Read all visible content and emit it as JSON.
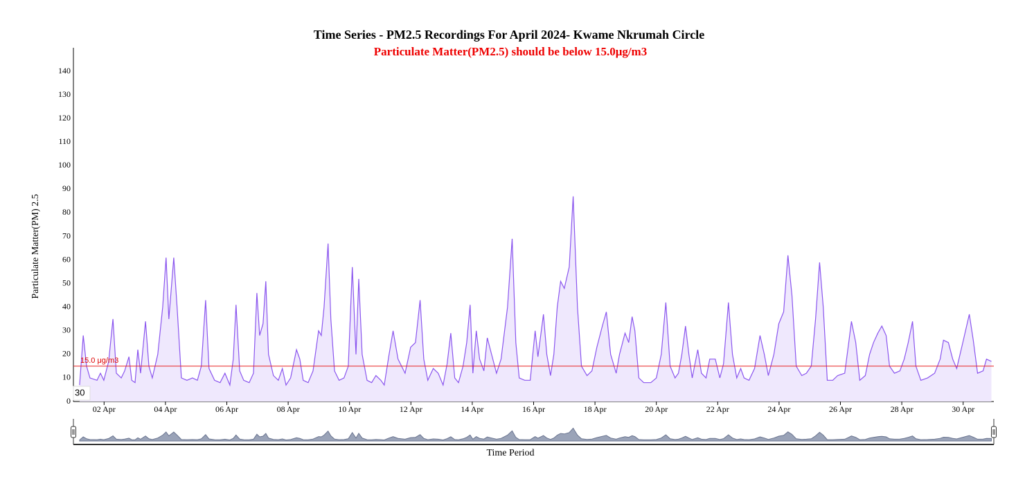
{
  "chart_data": {
    "type": "area",
    "title": "Time Series - PM2.5 Recordings For April 2024- Kwame Nkrumah Circle",
    "subtitle": "Particulate Matter(PM2.5) should be below 15.0μg/m3",
    "ylabel": "Particulate Matter(PM) 2.5",
    "xlabel": "Time Period",
    "annotation": "30",
    "threshold": 15,
    "threshold_label": "15.0 μg/m3",
    "threshold_color": "#e82020",
    "color": "#8a55ee",
    "fill_color": "#efe8fd",
    "xlim": [
      1,
      31
    ],
    "xticks": [
      {
        "value": 2,
        "label": "02 Apr"
      },
      {
        "value": 4,
        "label": "04 Apr"
      },
      {
        "value": 6,
        "label": "06 Apr"
      },
      {
        "value": 8,
        "label": "08 Apr"
      },
      {
        "value": 10,
        "label": "10 Apr"
      },
      {
        "value": 12,
        "label": "12 Apr"
      },
      {
        "value": 14,
        "label": "14 Apr"
      },
      {
        "value": 16,
        "label": "16 Apr"
      },
      {
        "value": 18,
        "label": "18 Apr"
      },
      {
        "value": 20,
        "label": "20 Apr"
      },
      {
        "value": 22,
        "label": "22 Apr"
      },
      {
        "value": 24,
        "label": "24 Apr"
      },
      {
        "value": 26,
        "label": "26 Apr"
      },
      {
        "value": 28,
        "label": "28 Apr"
      },
      {
        "value": 30,
        "label": "30 Apr"
      }
    ],
    "ylim": [
      0,
      150
    ],
    "yticks": [
      0,
      10,
      20,
      30,
      40,
      50,
      60,
      70,
      80,
      90,
      100,
      110,
      120,
      130,
      140
    ],
    "x": [
      1.2,
      1.32,
      1.43,
      1.54,
      1.77,
      1.88,
      1.99,
      2.15,
      2.29,
      2.4,
      2.56,
      2.67,
      2.81,
      2.9,
      3.01,
      3.1,
      3.19,
      3.35,
      3.46,
      3.57,
      3.75,
      3.91,
      4.02,
      4.11,
      4.27,
      4.38,
      4.52,
      4.7,
      4.88,
      5.04,
      5.17,
      5.31,
      5.42,
      5.6,
      5.78,
      5.94,
      6.1,
      6.21,
      6.3,
      6.42,
      6.55,
      6.73,
      6.87,
      6.98,
      7.07,
      7.18,
      7.27,
      7.36,
      7.52,
      7.68,
      7.81,
      7.93,
      8.08,
      8.27,
      8.38,
      8.49,
      8.65,
      8.81,
      8.99,
      9.08,
      9.17,
      9.3,
      9.39,
      9.51,
      9.66,
      9.82,
      9.96,
      10.09,
      10.21,
      10.3,
      10.41,
      10.57,
      10.72,
      10.86,
      11.02,
      11.13,
      11.29,
      11.42,
      11.58,
      11.81,
      11.99,
      12.15,
      12.3,
      12.42,
      12.55,
      12.73,
      12.89,
      13.05,
      13.18,
      13.3,
      13.43,
      13.55,
      13.7,
      13.82,
      13.93,
      14.02,
      14.13,
      14.24,
      14.38,
      14.49,
      14.63,
      14.79,
      14.94,
      15.15,
      15.3,
      15.42,
      15.53,
      15.71,
      15.89,
      16.05,
      16.14,
      16.32,
      16.43,
      16.55,
      16.66,
      16.77,
      16.88,
      17.0,
      17.16,
      17.29,
      17.43,
      17.56,
      17.74,
      17.9,
      18.06,
      18.24,
      18.37,
      18.51,
      18.69,
      18.8,
      18.98,
      19.1,
      19.21,
      19.3,
      19.43,
      19.59,
      19.82,
      20.0,
      20.16,
      20.31,
      20.45,
      20.61,
      20.72,
      20.83,
      20.95,
      21.06,
      21.17,
      21.35,
      21.47,
      21.62,
      21.74,
      21.92,
      22.07,
      22.19,
      22.35,
      22.48,
      22.62,
      22.75,
      22.86,
      23.02,
      23.2,
      23.38,
      23.52,
      23.65,
      23.83,
      23.99,
      24.15,
      24.29,
      24.42,
      24.56,
      24.74,
      24.89,
      25.05,
      25.19,
      25.32,
      25.44,
      25.57,
      25.75,
      25.91,
      26.14,
      26.27,
      26.36,
      26.5,
      26.63,
      26.81,
      26.95,
      27.08,
      27.22,
      27.35,
      27.49,
      27.6,
      27.76,
      27.94,
      28.08,
      28.21,
      28.35,
      28.46,
      28.62,
      28.84,
      29.07,
      29.25,
      29.36,
      29.52,
      29.66,
      29.79,
      29.97,
      30.2,
      30.33,
      30.47,
      30.65,
      30.76,
      30.92
    ],
    "values": [
      7,
      28,
      15,
      10,
      9,
      12,
      9,
      17,
      35,
      12,
      10,
      13,
      19,
      9,
      8,
      22,
      12,
      34,
      15,
      10,
      20,
      40,
      61,
      35,
      61,
      40,
      10,
      9,
      10,
      9,
      15,
      43,
      14,
      9,
      8,
      12,
      7,
      18,
      41,
      13,
      9,
      8,
      12,
      46,
      28,
      33,
      51,
      20,
      11,
      9,
      14,
      7,
      10,
      22,
      18,
      9,
      8,
      13,
      30,
      28,
      40,
      67,
      35,
      13,
      9,
      10,
      15,
      57,
      20,
      52,
      20,
      9,
      8,
      11,
      9,
      7,
      20,
      30,
      18,
      12,
      23,
      25,
      43,
      18,
      9,
      14,
      12,
      7,
      16,
      29,
      10,
      8,
      15,
      25,
      41,
      12,
      30,
      18,
      13,
      27,
      20,
      12,
      18,
      40,
      69,
      25,
      10,
      9,
      9,
      30,
      19,
      37,
      20,
      11,
      20,
      40,
      51,
      48,
      57,
      87,
      40,
      15,
      11,
      13,
      23,
      32,
      38,
      20,
      12,
      20,
      29,
      25,
      36,
      30,
      10,
      8,
      8,
      10,
      20,
      42,
      15,
      10,
      12,
      20,
      32,
      20,
      10,
      22,
      12,
      10,
      18,
      18,
      10,
      16,
      42,
      20,
      10,
      14,
      10,
      9,
      14,
      28,
      20,
      11,
      20,
      33,
      38,
      62,
      45,
      15,
      11,
      12,
      15,
      35,
      59,
      40,
      9,
      9,
      11,
      12,
      25,
      34,
      25,
      9,
      11,
      20,
      25,
      29,
      32,
      28,
      15,
      12,
      13,
      18,
      25,
      34,
      15,
      9,
      10,
      12,
      18,
      26,
      25,
      18,
      14,
      24,
      37,
      26,
      12,
      13,
      18,
      17
    ]
  }
}
